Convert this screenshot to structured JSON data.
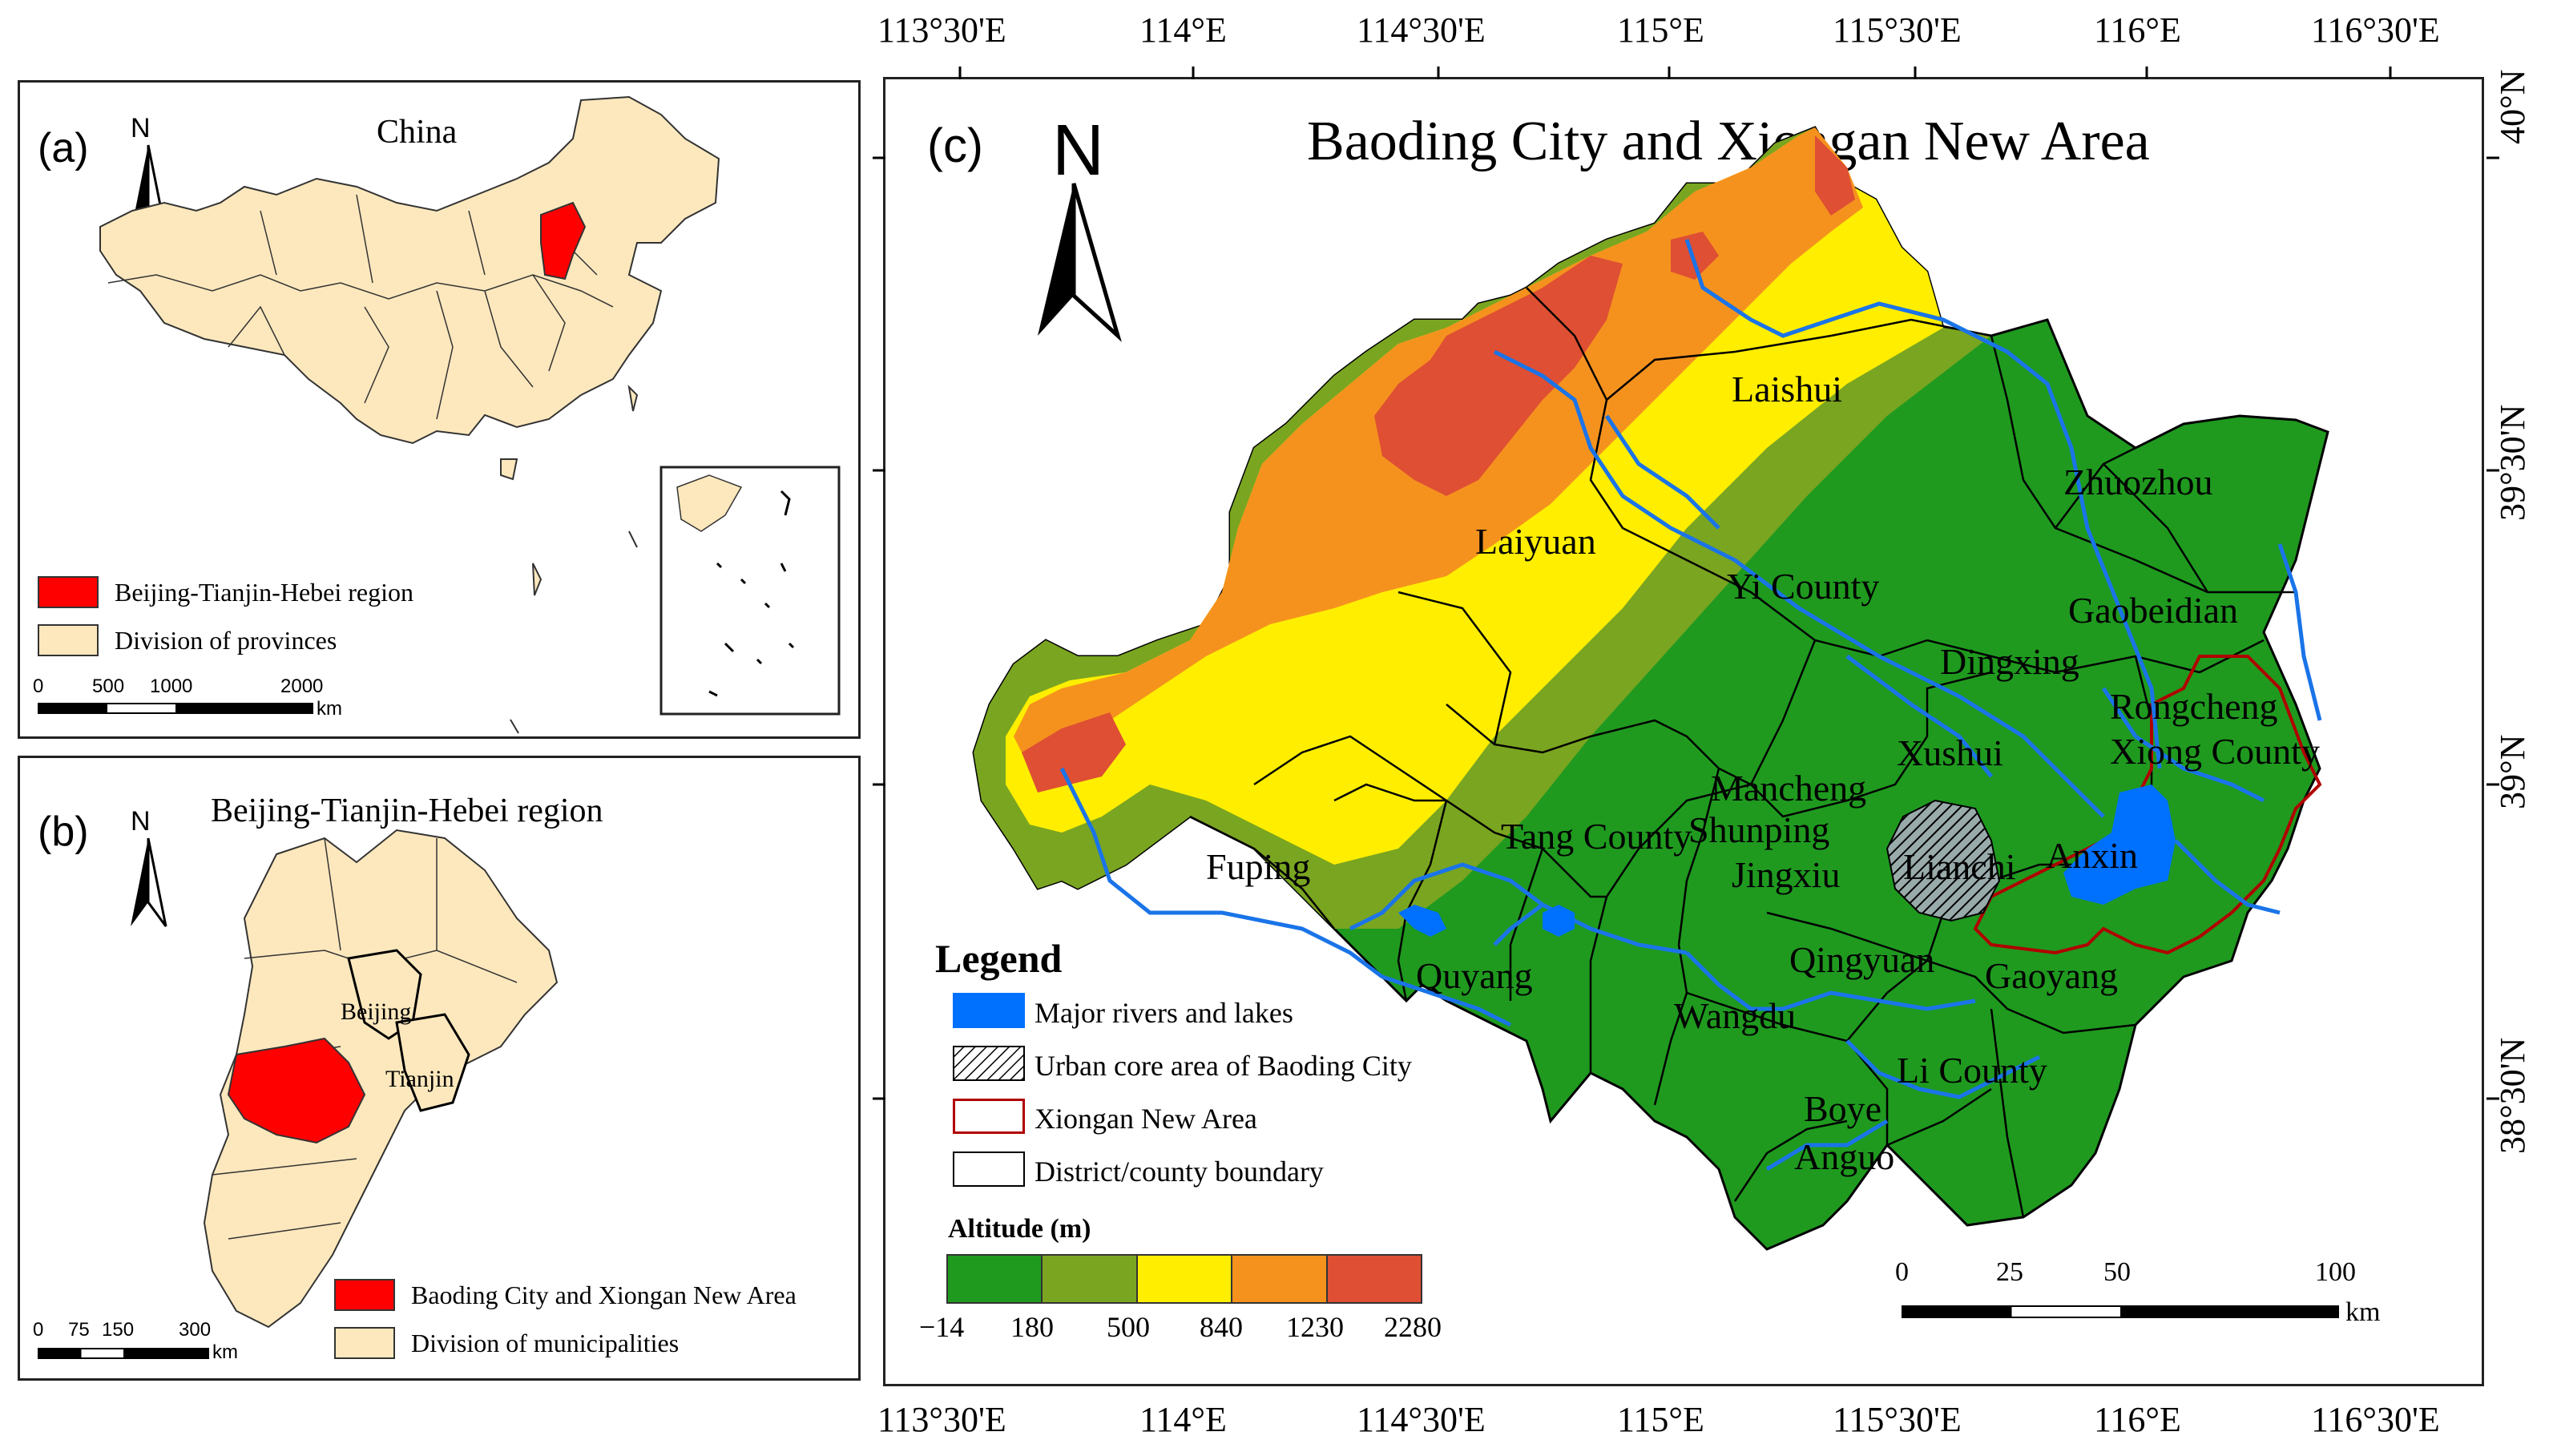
{
  "panel_a": {
    "label": "(a)",
    "title": "China",
    "north": "N",
    "legend": [
      {
        "label": "Beijing-Tianjin-Hebei region",
        "color": "#ff0000"
      },
      {
        "label": "Division of provinces",
        "color": "#fde8bd"
      }
    ],
    "scale": {
      "labels": [
        "0",
        "500",
        "1000",
        "2000"
      ],
      "unit": "km"
    }
  },
  "panel_b": {
    "label": "(b)",
    "title": "Beijing-Tianjin-Hebei region",
    "north": "N",
    "cities": [
      "Beijing",
      "Tianjin"
    ],
    "legend": [
      {
        "label": "Baoding City and Xiongan New Area",
        "color": "#ff0000"
      },
      {
        "label": "Division of municipalities",
        "color": "#fde8bd"
      }
    ],
    "scale": {
      "labels": [
        "0",
        "75",
        "150",
        "300"
      ],
      "unit": "km"
    }
  },
  "panel_c": {
    "label": "(c)",
    "title": "Baoding City and Xiongan New Area",
    "north": "N",
    "lon_ticks": [
      "113°30'E",
      "114°E",
      "114°30'E",
      "115°E",
      "115°30'E",
      "116°E",
      "116°30'E"
    ],
    "lat_ticks": [
      "40°N",
      "39°30'N",
      "39°N",
      "38°30'N"
    ],
    "places": [
      "Laishui",
      "Zhuozhou",
      "Laiyuan",
      "Yi County",
      "Gaobeidian",
      "Dingxing",
      "Rongcheng",
      "Xiong County",
      "Xushui",
      "Mancheng",
      "Anxin",
      "Fuping",
      "Tang County",
      "Shunping",
      "Jingxiu",
      "Lianchi",
      "Quyang",
      "Qingyuan",
      "Gaoyang",
      "Wangdu",
      "Li County",
      "Boye",
      "Anguo"
    ],
    "legend": {
      "title": "Legend",
      "items": [
        {
          "label": "Major rivers and lakes",
          "color": "#0070ff",
          "type": "fill"
        },
        {
          "label": "Urban core area of Baoding City",
          "color": "#000000",
          "type": "hatch"
        },
        {
          "label": "Xiongan New Area",
          "color": "#b00000",
          "type": "outline"
        },
        {
          "label": "District/county boundary",
          "color": "#000000",
          "type": "outline"
        }
      ],
      "altitude_title": "Altitude (m)",
      "altitude_breaks": [
        "−14",
        "180",
        "500",
        "840",
        "1230",
        "2280"
      ],
      "altitude_colors": [
        "#1f9a1f",
        "#7aa521",
        "#ffee00",
        "#f5921e",
        "#de4f33"
      ]
    },
    "scale": {
      "labels": [
        "0",
        "25",
        "50",
        "100"
      ],
      "unit": "km"
    }
  }
}
